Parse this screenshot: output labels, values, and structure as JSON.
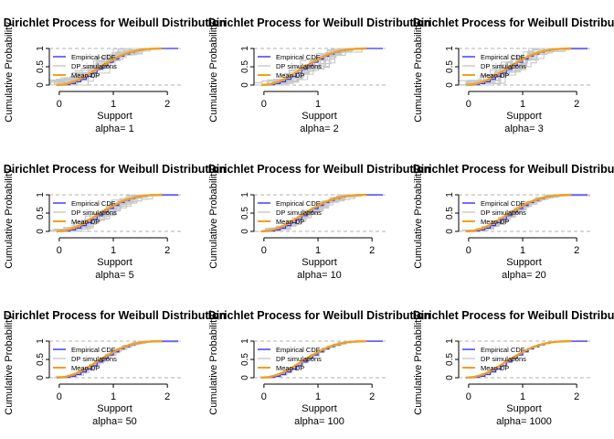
{
  "shared": {
    "ylabel": "Cumulative Probability",
    "xlabel": "Support",
    "legend": [
      "Empirical CDF",
      "DP simulations",
      "Mean DP"
    ],
    "colors": {
      "empirical": "#3333ff",
      "simulations": "#c8c8c8",
      "mean": "#f0a020",
      "refline": "#b0b0b0"
    }
  },
  "chart_data": [
    {
      "type": "line",
      "title": "Dirichlet Process for Weibull Distribution",
      "subtitle": "alpha= 1",
      "xlabel": "Support",
      "ylabel": "Cumulative Probability",
      "xticks": [
        0,
        1,
        2
      ],
      "yticks": [
        0,
        0.5,
        1
      ],
      "xlim": [
        -0.15,
        2.2
      ],
      "ylim": [
        0,
        1
      ],
      "grid": false,
      "legend_position": "top-left",
      "series": [
        {
          "name": "Empirical CDF",
          "x": [
            -0.05,
            0.1,
            0.2,
            0.3,
            0.4,
            0.5,
            0.6,
            0.7,
            0.8,
            0.9,
            1.0,
            1.1,
            1.2,
            1.3,
            1.4,
            1.5,
            1.6,
            1.7,
            2.2
          ],
          "y": [
            0,
            0.01,
            0.04,
            0.09,
            0.16,
            0.24,
            0.33,
            0.43,
            0.53,
            0.62,
            0.71,
            0.79,
            0.85,
            0.9,
            0.94,
            0.97,
            0.99,
            1.0,
            1.0
          ]
        },
        {
          "name": "Mean DP",
          "x": [
            -0.05,
            0.1,
            0.2,
            0.3,
            0.4,
            0.5,
            0.6,
            0.7,
            0.8,
            0.9,
            1.0,
            1.1,
            1.2,
            1.3,
            1.4,
            1.5,
            1.6,
            1.7,
            1.9
          ],
          "y": [
            0,
            0.02,
            0.06,
            0.11,
            0.18,
            0.26,
            0.35,
            0.44,
            0.53,
            0.62,
            0.7,
            0.78,
            0.84,
            0.89,
            0.93,
            0.96,
            0.98,
            0.99,
            1.0
          ]
        }
      ]
    },
    {
      "type": "line",
      "title": "Dirichlet Process for Weibull Distribution",
      "subtitle": "alpha= 2",
      "xlabel": "Support",
      "ylabel": "Cumulative Probability",
      "xticks": [
        0,
        1
      ],
      "yticks": [
        0,
        0.5,
        1
      ],
      "xlim": [
        -0.15,
        2.2
      ],
      "ylim": [
        0,
        1
      ],
      "grid": false,
      "legend_position": "top-left",
      "series": [
        {
          "name": "Empirical CDF",
          "x": [
            -0.05,
            0.1,
            0.2,
            0.3,
            0.4,
            0.5,
            0.6,
            0.7,
            0.8,
            0.9,
            1.0,
            1.1,
            1.2,
            1.3,
            1.4,
            1.5,
            1.6,
            1.7,
            2.2
          ],
          "y": [
            0,
            0.01,
            0.04,
            0.09,
            0.16,
            0.24,
            0.33,
            0.43,
            0.53,
            0.62,
            0.71,
            0.79,
            0.85,
            0.9,
            0.94,
            0.97,
            0.99,
            1.0,
            1.0
          ]
        },
        {
          "name": "Mean DP",
          "x": [
            -0.05,
            0.1,
            0.2,
            0.3,
            0.4,
            0.5,
            0.6,
            0.7,
            0.8,
            0.9,
            1.0,
            1.1,
            1.2,
            1.3,
            1.4,
            1.5,
            1.6,
            1.7,
            1.9
          ],
          "y": [
            0,
            0.02,
            0.06,
            0.11,
            0.18,
            0.26,
            0.35,
            0.44,
            0.53,
            0.62,
            0.7,
            0.78,
            0.84,
            0.89,
            0.93,
            0.96,
            0.98,
            0.99,
            1.0
          ]
        }
      ]
    },
    {
      "type": "line",
      "title": "Dirichlet Process for Weibull Distribution",
      "subtitle": "alpha= 3",
      "xlabel": "Support",
      "ylabel": "Cumulative Probability",
      "xticks": [
        0,
        1,
        2
      ],
      "yticks": [
        0,
        0.5,
        1
      ],
      "xlim": [
        -0.15,
        2.2
      ],
      "ylim": [
        0,
        1
      ],
      "grid": false,
      "legend_position": "top-left",
      "series": [
        {
          "name": "Empirical CDF",
          "x": [
            -0.05,
            0.1,
            0.2,
            0.3,
            0.4,
            0.5,
            0.6,
            0.7,
            0.8,
            0.9,
            1.0,
            1.1,
            1.2,
            1.3,
            1.4,
            1.5,
            1.6,
            1.7,
            2.2
          ],
          "y": [
            0,
            0.01,
            0.04,
            0.09,
            0.16,
            0.24,
            0.33,
            0.43,
            0.53,
            0.62,
            0.71,
            0.79,
            0.85,
            0.9,
            0.94,
            0.97,
            0.99,
            1.0,
            1.0
          ]
        },
        {
          "name": "Mean DP",
          "x": [
            -0.05,
            0.1,
            0.2,
            0.3,
            0.4,
            0.5,
            0.6,
            0.7,
            0.8,
            0.9,
            1.0,
            1.1,
            1.2,
            1.3,
            1.4,
            1.5,
            1.6,
            1.7,
            1.9
          ],
          "y": [
            0,
            0.02,
            0.06,
            0.11,
            0.18,
            0.26,
            0.35,
            0.44,
            0.53,
            0.62,
            0.7,
            0.78,
            0.84,
            0.89,
            0.93,
            0.96,
            0.98,
            0.99,
            1.0
          ]
        }
      ]
    },
    {
      "type": "line",
      "title": "Dirichlet Process for Weibull Distribution",
      "subtitle": "alpha= 5",
      "xlabel": "Support",
      "ylabel": "Cumulative Probability",
      "xticks": [
        0,
        1,
        2
      ],
      "yticks": [
        0,
        0.5,
        1
      ],
      "xlim": [
        -0.15,
        2.2
      ],
      "ylim": [
        0,
        1
      ],
      "grid": false,
      "legend_position": "top-left",
      "series": [
        {
          "name": "Empirical CDF",
          "x": [
            -0.05,
            0.1,
            0.2,
            0.3,
            0.4,
            0.5,
            0.6,
            0.7,
            0.8,
            0.9,
            1.0,
            1.1,
            1.2,
            1.3,
            1.4,
            1.5,
            1.6,
            1.7,
            2.2
          ],
          "y": [
            0,
            0.01,
            0.04,
            0.09,
            0.16,
            0.24,
            0.33,
            0.43,
            0.53,
            0.62,
            0.71,
            0.79,
            0.85,
            0.9,
            0.94,
            0.97,
            0.99,
            1.0,
            1.0
          ]
        },
        {
          "name": "Mean DP",
          "x": [
            -0.05,
            0.1,
            0.2,
            0.3,
            0.4,
            0.5,
            0.6,
            0.7,
            0.8,
            0.9,
            1.0,
            1.1,
            1.2,
            1.3,
            1.4,
            1.5,
            1.6,
            1.7,
            1.9
          ],
          "y": [
            0,
            0.02,
            0.06,
            0.11,
            0.18,
            0.26,
            0.35,
            0.44,
            0.53,
            0.62,
            0.7,
            0.78,
            0.84,
            0.89,
            0.93,
            0.96,
            0.98,
            0.99,
            1.0
          ]
        }
      ]
    },
    {
      "type": "line",
      "title": "Dirichlet Process for Weibull Distribution",
      "subtitle": "alpha= 10",
      "xlabel": "Support",
      "ylabel": "Cumulative Probability",
      "xticks": [
        0,
        1,
        2
      ],
      "yticks": [
        0,
        0.5,
        1
      ],
      "xlim": [
        -0.15,
        2.2
      ],
      "ylim": [
        0,
        1
      ],
      "grid": false,
      "legend_position": "top-left",
      "series": [
        {
          "name": "Empirical CDF",
          "x": [
            -0.05,
            0.1,
            0.2,
            0.3,
            0.4,
            0.5,
            0.6,
            0.7,
            0.8,
            0.9,
            1.0,
            1.1,
            1.2,
            1.3,
            1.4,
            1.5,
            1.6,
            1.7,
            2.2
          ],
          "y": [
            0,
            0.01,
            0.04,
            0.09,
            0.16,
            0.24,
            0.33,
            0.43,
            0.53,
            0.62,
            0.71,
            0.79,
            0.85,
            0.9,
            0.94,
            0.97,
            0.99,
            1.0,
            1.0
          ]
        },
        {
          "name": "Mean DP",
          "x": [
            -0.05,
            0.1,
            0.2,
            0.3,
            0.4,
            0.5,
            0.6,
            0.7,
            0.8,
            0.9,
            1.0,
            1.1,
            1.2,
            1.3,
            1.4,
            1.5,
            1.6,
            1.7,
            1.9
          ],
          "y": [
            0,
            0.02,
            0.06,
            0.11,
            0.18,
            0.26,
            0.35,
            0.44,
            0.53,
            0.62,
            0.7,
            0.78,
            0.84,
            0.89,
            0.93,
            0.96,
            0.98,
            0.99,
            1.0
          ]
        }
      ]
    },
    {
      "type": "line",
      "title": "Dirichlet Process for Weibull Distribution",
      "subtitle": "alpha= 20",
      "xlabel": "Support",
      "ylabel": "Cumulative Probability",
      "xticks": [
        0,
        1,
        2
      ],
      "yticks": [
        0,
        0.5,
        1
      ],
      "xlim": [
        -0.15,
        2.2
      ],
      "ylim": [
        0,
        1
      ],
      "grid": false,
      "legend_position": "top-left",
      "series": [
        {
          "name": "Empirical CDF",
          "x": [
            -0.05,
            0.1,
            0.2,
            0.3,
            0.4,
            0.5,
            0.6,
            0.7,
            0.8,
            0.9,
            1.0,
            1.1,
            1.2,
            1.3,
            1.4,
            1.5,
            1.6,
            1.7,
            2.2
          ],
          "y": [
            0,
            0.01,
            0.04,
            0.09,
            0.16,
            0.24,
            0.33,
            0.43,
            0.53,
            0.62,
            0.71,
            0.79,
            0.85,
            0.9,
            0.94,
            0.97,
            0.99,
            1.0,
            1.0
          ]
        },
        {
          "name": "Mean DP",
          "x": [
            -0.05,
            0.1,
            0.2,
            0.3,
            0.4,
            0.5,
            0.6,
            0.7,
            0.8,
            0.9,
            1.0,
            1.1,
            1.2,
            1.3,
            1.4,
            1.5,
            1.6,
            1.7,
            1.9
          ],
          "y": [
            0,
            0.02,
            0.06,
            0.11,
            0.18,
            0.26,
            0.35,
            0.44,
            0.53,
            0.62,
            0.7,
            0.78,
            0.84,
            0.89,
            0.93,
            0.96,
            0.98,
            0.99,
            1.0
          ]
        }
      ]
    },
    {
      "type": "line",
      "title": "Dirichlet Process for Weibull Distribution",
      "subtitle": "alpha= 50",
      "xlabel": "Support",
      "ylabel": "Cumulative Probability",
      "xticks": [
        0,
        1,
        2
      ],
      "yticks": [
        0,
        0.5,
        1
      ],
      "xlim": [
        -0.15,
        2.2
      ],
      "ylim": [
        0,
        1
      ],
      "grid": false,
      "legend_position": "top-left",
      "series": [
        {
          "name": "Empirical CDF",
          "x": [
            -0.05,
            0.1,
            0.2,
            0.3,
            0.4,
            0.5,
            0.6,
            0.7,
            0.8,
            0.9,
            1.0,
            1.1,
            1.2,
            1.3,
            1.4,
            1.5,
            1.6,
            1.7,
            2.2
          ],
          "y": [
            0,
            0.01,
            0.04,
            0.09,
            0.16,
            0.24,
            0.33,
            0.43,
            0.53,
            0.62,
            0.71,
            0.79,
            0.85,
            0.9,
            0.94,
            0.97,
            0.99,
            1.0,
            1.0
          ]
        },
        {
          "name": "Mean DP",
          "x": [
            -0.05,
            0.1,
            0.2,
            0.3,
            0.4,
            0.5,
            0.6,
            0.7,
            0.8,
            0.9,
            1.0,
            1.1,
            1.2,
            1.3,
            1.4,
            1.5,
            1.6,
            1.7,
            1.9
          ],
          "y": [
            0,
            0.02,
            0.06,
            0.11,
            0.18,
            0.26,
            0.35,
            0.44,
            0.53,
            0.62,
            0.7,
            0.78,
            0.84,
            0.89,
            0.93,
            0.96,
            0.98,
            0.99,
            1.0
          ]
        }
      ]
    },
    {
      "type": "line",
      "title": "Dirichlet Process for Weibull Distribution",
      "subtitle": "alpha= 100",
      "xlabel": "Support",
      "ylabel": "Cumulative Probability",
      "xticks": [
        0,
        1,
        2
      ],
      "yticks": [
        0,
        0.5,
        1
      ],
      "xlim": [
        -0.15,
        2.2
      ],
      "ylim": [
        0,
        1
      ],
      "grid": false,
      "legend_position": "top-left",
      "series": [
        {
          "name": "Empirical CDF",
          "x": [
            -0.05,
            0.1,
            0.2,
            0.3,
            0.4,
            0.5,
            0.6,
            0.7,
            0.8,
            0.9,
            1.0,
            1.1,
            1.2,
            1.3,
            1.4,
            1.5,
            1.6,
            1.7,
            2.2
          ],
          "y": [
            0,
            0.01,
            0.04,
            0.09,
            0.16,
            0.24,
            0.33,
            0.43,
            0.53,
            0.62,
            0.71,
            0.79,
            0.85,
            0.9,
            0.94,
            0.97,
            0.99,
            1.0,
            1.0
          ]
        },
        {
          "name": "Mean DP",
          "x": [
            -0.05,
            0.1,
            0.2,
            0.3,
            0.4,
            0.5,
            0.6,
            0.7,
            0.8,
            0.9,
            1.0,
            1.1,
            1.2,
            1.3,
            1.4,
            1.5,
            1.6,
            1.7,
            1.9
          ],
          "y": [
            0,
            0.02,
            0.06,
            0.11,
            0.18,
            0.26,
            0.35,
            0.44,
            0.53,
            0.62,
            0.7,
            0.78,
            0.84,
            0.89,
            0.93,
            0.96,
            0.98,
            0.99,
            1.0
          ]
        }
      ]
    },
    {
      "type": "line",
      "title": "Dirichlet Process for Weibull Distribution",
      "subtitle": "alpha= 1000",
      "xlabel": "Support",
      "ylabel": "Cumulative Probability",
      "xticks": [
        0,
        1,
        2
      ],
      "yticks": [
        0,
        0.5,
        1
      ],
      "xlim": [
        -0.15,
        2.2
      ],
      "ylim": [
        0,
        1
      ],
      "grid": false,
      "legend_position": "top-left",
      "series": [
        {
          "name": "Empirical CDF",
          "x": [
            -0.05,
            0.1,
            0.2,
            0.3,
            0.4,
            0.5,
            0.6,
            0.7,
            0.8,
            0.9,
            1.0,
            1.1,
            1.2,
            1.3,
            1.4,
            1.5,
            1.6,
            1.7,
            2.2
          ],
          "y": [
            0,
            0.01,
            0.04,
            0.09,
            0.16,
            0.24,
            0.33,
            0.43,
            0.53,
            0.62,
            0.71,
            0.79,
            0.85,
            0.9,
            0.94,
            0.97,
            0.99,
            1.0,
            1.0
          ]
        },
        {
          "name": "Mean DP",
          "x": [
            -0.05,
            0.1,
            0.2,
            0.3,
            0.4,
            0.5,
            0.6,
            0.7,
            0.8,
            0.9,
            1.0,
            1.1,
            1.2,
            1.3,
            1.4,
            1.5,
            1.6,
            1.7,
            1.9
          ],
          "y": [
            0,
            0.02,
            0.06,
            0.11,
            0.18,
            0.26,
            0.35,
            0.44,
            0.53,
            0.62,
            0.7,
            0.78,
            0.84,
            0.89,
            0.93,
            0.96,
            0.98,
            0.99,
            1.0
          ]
        }
      ]
    }
  ]
}
